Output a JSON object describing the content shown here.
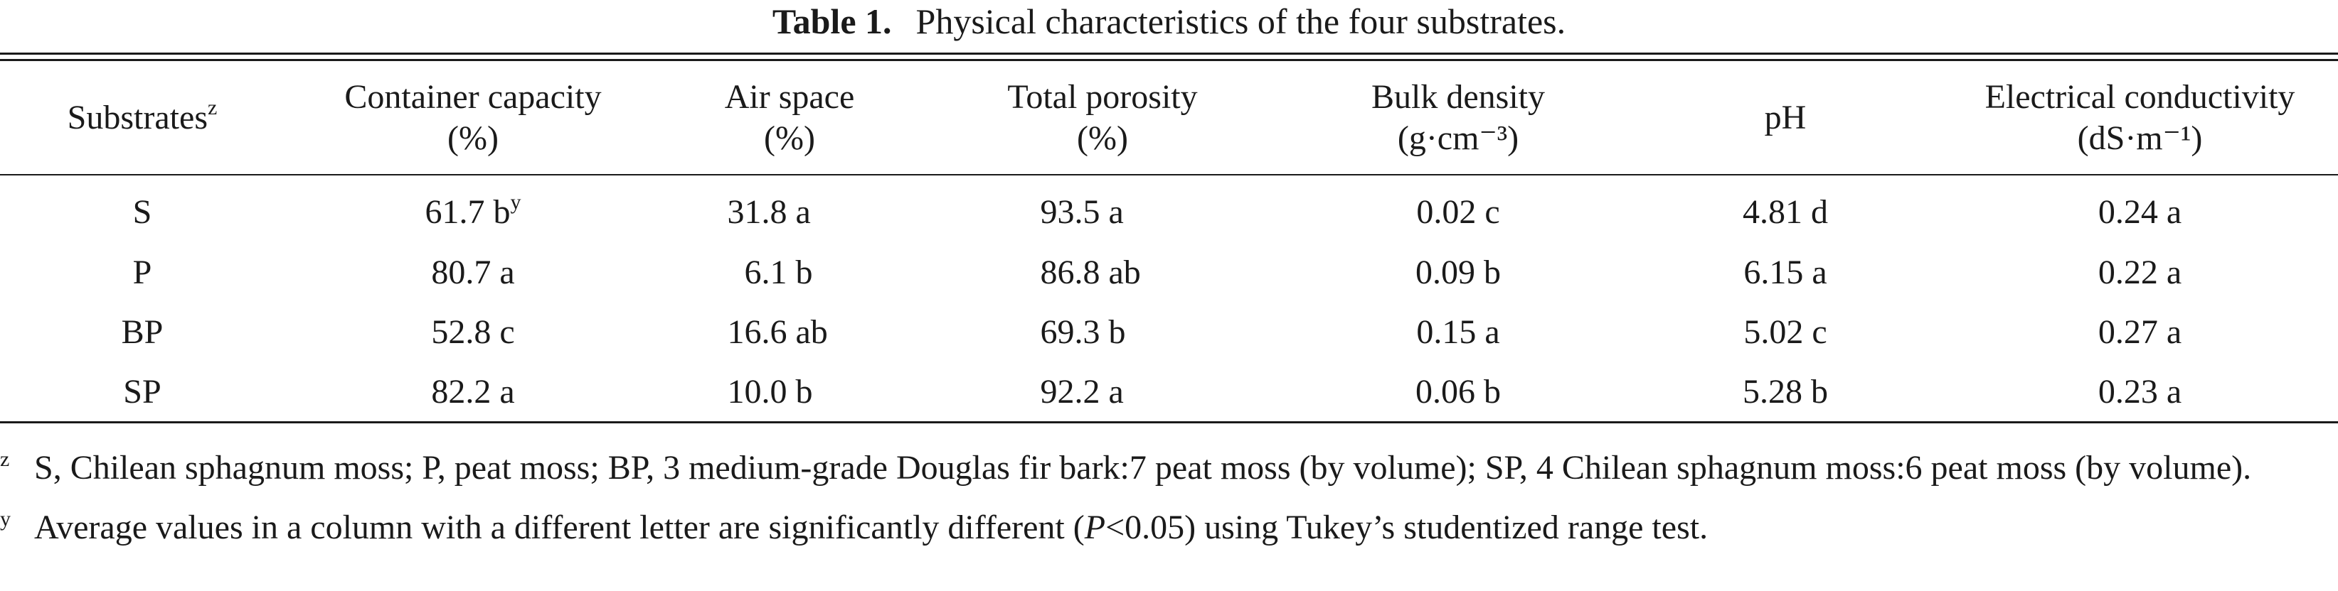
{
  "caption": {
    "label": "Table 1.",
    "text": "Physical characteristics of the four substrates."
  },
  "table": {
    "headers": [
      {
        "line1": "Substrates",
        "sup": "z",
        "line2": ""
      },
      {
        "line1": "Container capacity",
        "sup": "",
        "line2": "(%)"
      },
      {
        "line1": "Air space",
        "sup": "",
        "line2": "(%)"
      },
      {
        "line1": "Total porosity",
        "sup": "",
        "line2": "(%)"
      },
      {
        "line1": "Bulk density",
        "sup": "",
        "line2": "(g·cm⁻³)"
      },
      {
        "line1": "pH",
        "sup": "",
        "line2": ""
      },
      {
        "line1": "Electrical conductivity",
        "sup": "",
        "line2": "(dS·m⁻¹)"
      }
    ],
    "rows": [
      {
        "substrate": "S",
        "container_capacity": "61.7 b",
        "container_capacity_sup": "y",
        "air_space": "31.8 a",
        "total_porosity": "93.5 a",
        "bulk_density": "0.02 c",
        "ph": "4.81 d",
        "ec": "0.24 a"
      },
      {
        "substrate": "P",
        "container_capacity": "80.7 a",
        "container_capacity_sup": "",
        "air_space": "6.1 b",
        "total_porosity": "86.8 ab",
        "bulk_density": "0.09 b",
        "ph": "6.15 a",
        "ec": "0.22 a"
      },
      {
        "substrate": "BP",
        "container_capacity": "52.8 c",
        "container_capacity_sup": "",
        "air_space": "16.6 ab",
        "total_porosity": "69.3 b",
        "bulk_density": "0.15 a",
        "ph": "5.02 c",
        "ec": "0.27 a"
      },
      {
        "substrate": "SP",
        "container_capacity": "82.2 a",
        "container_capacity_sup": "",
        "air_space": "10.0 b",
        "total_porosity": "92.2 a",
        "bulk_density": "0.06 b",
        "ph": "5.28 b",
        "ec": "0.23 a"
      }
    ]
  },
  "footnotes": {
    "z": {
      "mark": "z",
      "text": "S, Chilean sphagnum moss; P, peat moss; BP, 3 medium-grade Douglas fir bark:7 peat moss (by volume); SP, 4 Chilean sphagnum moss:6 peat moss (by volume)."
    },
    "y": {
      "mark": "y",
      "before": "Average values in a column with a different letter are significantly different (",
      "p": "P",
      "after": "<0.05) using Tukey’s studentized range test."
    }
  }
}
